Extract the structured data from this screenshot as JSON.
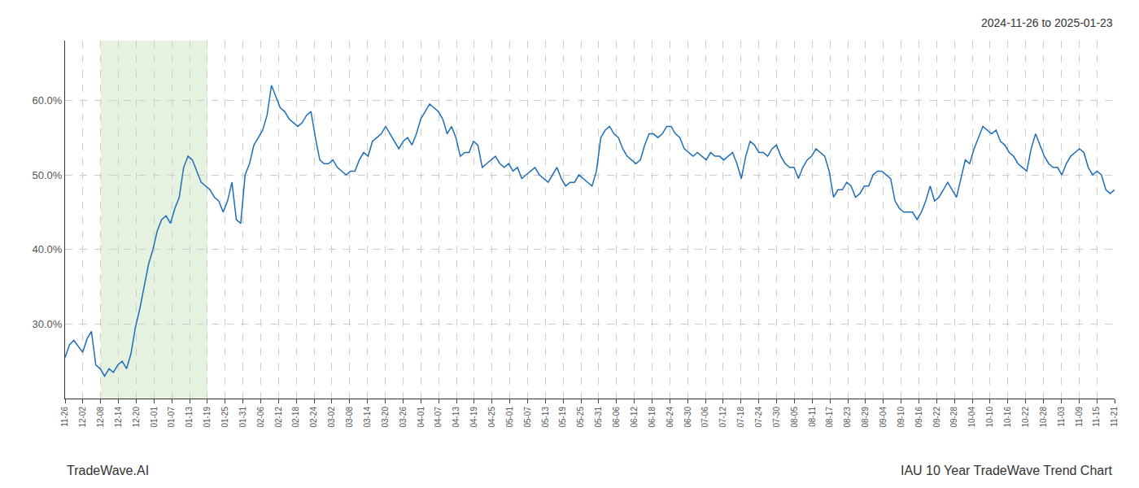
{
  "chart_data": {
    "type": "line",
    "title": "IAU 10 Year TradeWave Trend Chart",
    "subtitle": "2024-11-26 to 2025-01-23",
    "annotations": [
      "TradeWave.AI"
    ],
    "color": "#1f6eb5",
    "shaded_range": [
      8.1017,
      32.4068
    ],
    "shaded_color": "#d4eacc",
    "grid": true,
    "xlim": [
      0,
      239
    ],
    "xticks": [
      {
        "value": 0,
        "label": "11-26"
      },
      {
        "value": 4.0508,
        "label": "12-02"
      },
      {
        "value": 8.1017,
        "label": "12-08"
      },
      {
        "value": 12.1525,
        "label": "12-14"
      },
      {
        "value": 16.2034,
        "label": "12-20"
      },
      {
        "value": 20.2542,
        "label": "01-01"
      },
      {
        "value": 24.3051,
        "label": "01-07"
      },
      {
        "value": 28.3559,
        "label": "01-13"
      },
      {
        "value": 32.4068,
        "label": "01-19"
      },
      {
        "value": 36.4576,
        "label": "01-25"
      },
      {
        "value": 40.5085,
        "label": "01-31"
      },
      {
        "value": 44.5593,
        "label": "02-06"
      },
      {
        "value": 48.6102,
        "label": "02-12"
      },
      {
        "value": 52.661,
        "label": "02-18"
      },
      {
        "value": 56.7119,
        "label": "02-24"
      },
      {
        "value": 60.7627,
        "label": "03-02"
      },
      {
        "value": 64.8136,
        "label": "03-08"
      },
      {
        "value": 68.8644,
        "label": "03-14"
      },
      {
        "value": 72.9153,
        "label": "03-20"
      },
      {
        "value": 76.9661,
        "label": "03-26"
      },
      {
        "value": 81.0169,
        "label": "04-01"
      },
      {
        "value": 85.0678,
        "label": "04-07"
      },
      {
        "value": 89.1186,
        "label": "04-13"
      },
      {
        "value": 93.1695,
        "label": "04-19"
      },
      {
        "value": 97.2203,
        "label": "04-25"
      },
      {
        "value": 101.2712,
        "label": "05-01"
      },
      {
        "value": 105.322,
        "label": "05-07"
      },
      {
        "value": 109.3729,
        "label": "05-13"
      },
      {
        "value": 113.4237,
        "label": "05-19"
      },
      {
        "value": 117.4746,
        "label": "05-25"
      },
      {
        "value": 121.5254,
        "label": "05-31"
      },
      {
        "value": 125.5763,
        "label": "06-06"
      },
      {
        "value": 129.6271,
        "label": "06-12"
      },
      {
        "value": 133.678,
        "label": "06-18"
      },
      {
        "value": 137.7288,
        "label": "06-24"
      },
      {
        "value": 141.7797,
        "label": "06-30"
      },
      {
        "value": 145.8305,
        "label": "07-06"
      },
      {
        "value": 149.8814,
        "label": "07-12"
      },
      {
        "value": 153.9322,
        "label": "07-18"
      },
      {
        "value": 157.9831,
        "label": "07-24"
      },
      {
        "value": 162.0339,
        "label": "07-30"
      },
      {
        "value": 166.0847,
        "label": "08-05"
      },
      {
        "value": 170.1356,
        "label": "08-11"
      },
      {
        "value": 174.1864,
        "label": "08-17"
      },
      {
        "value": 178.2373,
        "label": "08-23"
      },
      {
        "value": 182.2881,
        "label": "08-29"
      },
      {
        "value": 186.339,
        "label": "09-04"
      },
      {
        "value": 190.3898,
        "label": "09-10"
      },
      {
        "value": 194.4407,
        "label": "09-16"
      },
      {
        "value": 198.4915,
        "label": "09-22"
      },
      {
        "value": 202.5424,
        "label": "09-28"
      },
      {
        "value": 206.5932,
        "label": "10-04"
      },
      {
        "value": 210.6441,
        "label": "10-10"
      },
      {
        "value": 214.6949,
        "label": "10-16"
      },
      {
        "value": 218.7458,
        "label": "10-22"
      },
      {
        "value": 222.7966,
        "label": "10-28"
      },
      {
        "value": 226.8475,
        "label": "11-03"
      },
      {
        "value": 230.8983,
        "label": "11-09"
      },
      {
        "value": 234.9492,
        "label": "11-15"
      },
      {
        "value": 239,
        "label": "11-21"
      }
    ],
    "ylim": [
      20,
      68
    ],
    "yticks": [
      {
        "value": 30,
        "label": "30.0%"
      },
      {
        "value": 40,
        "label": "40.0%"
      },
      {
        "value": 50,
        "label": "50.0%"
      },
      {
        "value": 60,
        "label": "60.0%"
      }
    ],
    "values": [
      25.5,
      27.2,
      27.8,
      27.0,
      26.2,
      28.0,
      29.0,
      24.5,
      24.0,
      23.0,
      24.0,
      23.5,
      24.5,
      25.0,
      24.0,
      26.0,
      29.5,
      32.0,
      35.0,
      38.0,
      40.0,
      42.5,
      44.0,
      44.5,
      43.5,
      45.5,
      47.0,
      51.0,
      52.5,
      52.0,
      50.5,
      49.0,
      48.5,
      48.0,
      47.0,
      46.5,
      45.0,
      46.5,
      49.0,
      44.0,
      43.5,
      50.0,
      51.5,
      54.0,
      55.0,
      56.0,
      58.0,
      62.0,
      60.5,
      59.0,
      58.5,
      57.5,
      57.0,
      56.5,
      57.0,
      58.0,
      58.5,
      55.0,
      52.0,
      51.5,
      51.5,
      52.0,
      51.0,
      50.5,
      50.0,
      50.5,
      50.5,
      52.0,
      53.0,
      52.5,
      54.5,
      55.0,
      55.5,
      56.5,
      55.5,
      54.5,
      53.5,
      54.5,
      55.0,
      54.0,
      55.5,
      57.5,
      58.5,
      59.5,
      59.0,
      58.5,
      57.5,
      55.5,
      56.5,
      55.0,
      52.5,
      53.0,
      53.0,
      54.5,
      54.0,
      51.0,
      51.5,
      52.0,
      52.5,
      51.5,
      51.0,
      51.5,
      50.5,
      51.0,
      49.5,
      50.0,
      50.5,
      51.0,
      50.0,
      49.5,
      49.0,
      50.0,
      51.0,
      49.5,
      48.5,
      49.0,
      49.0,
      50.0,
      49.5,
      49.0,
      48.5,
      50.5,
      55.0,
      56.0,
      56.5,
      55.5,
      55.0,
      53.5,
      52.5,
      52.0,
      51.5,
      52.0,
      54.0,
      55.5,
      55.5,
      55.0,
      55.5,
      56.5,
      56.5,
      55.5,
      55.0,
      53.5,
      53.0,
      52.5,
      53.0,
      52.5,
      52.0,
      53.0,
      52.5,
      52.5,
      52.0,
      52.5,
      53.0,
      51.5,
      49.5,
      52.5,
      54.5,
      54.0,
      53.0,
      53.0,
      52.5,
      53.5,
      54.0,
      52.5,
      51.5,
      51.0,
      51.0,
      49.5,
      51.0,
      52.0,
      52.5,
      53.5,
      53.0,
      52.5,
      50.5,
      47.0,
      48.0,
      48.0,
      49.0,
      48.5,
      47.0,
      47.5,
      48.5,
      48.5,
      50.0,
      50.5,
      50.5,
      50.0,
      49.5,
      46.5,
      45.5,
      45.0,
      45.0,
      45.0,
      44.0,
      45.0,
      46.5,
      48.5,
      46.5,
      47.0,
      48.0,
      49.0,
      48.0,
      47.0,
      49.5,
      52.0,
      51.5,
      53.5,
      55.0,
      56.5,
      56.0,
      55.5,
      56.0,
      54.5,
      54.0,
      53.0,
      52.5,
      51.5,
      51.0,
      50.5,
      53.5,
      55.5,
      54.0,
      52.5,
      51.5,
      51.0,
      51.0,
      50.0,
      51.5,
      52.5,
      53.0,
      53.5,
      53.0,
      51.0,
      50.0,
      50.5,
      50.0,
      48.0,
      47.5,
      48.0
    ]
  }
}
